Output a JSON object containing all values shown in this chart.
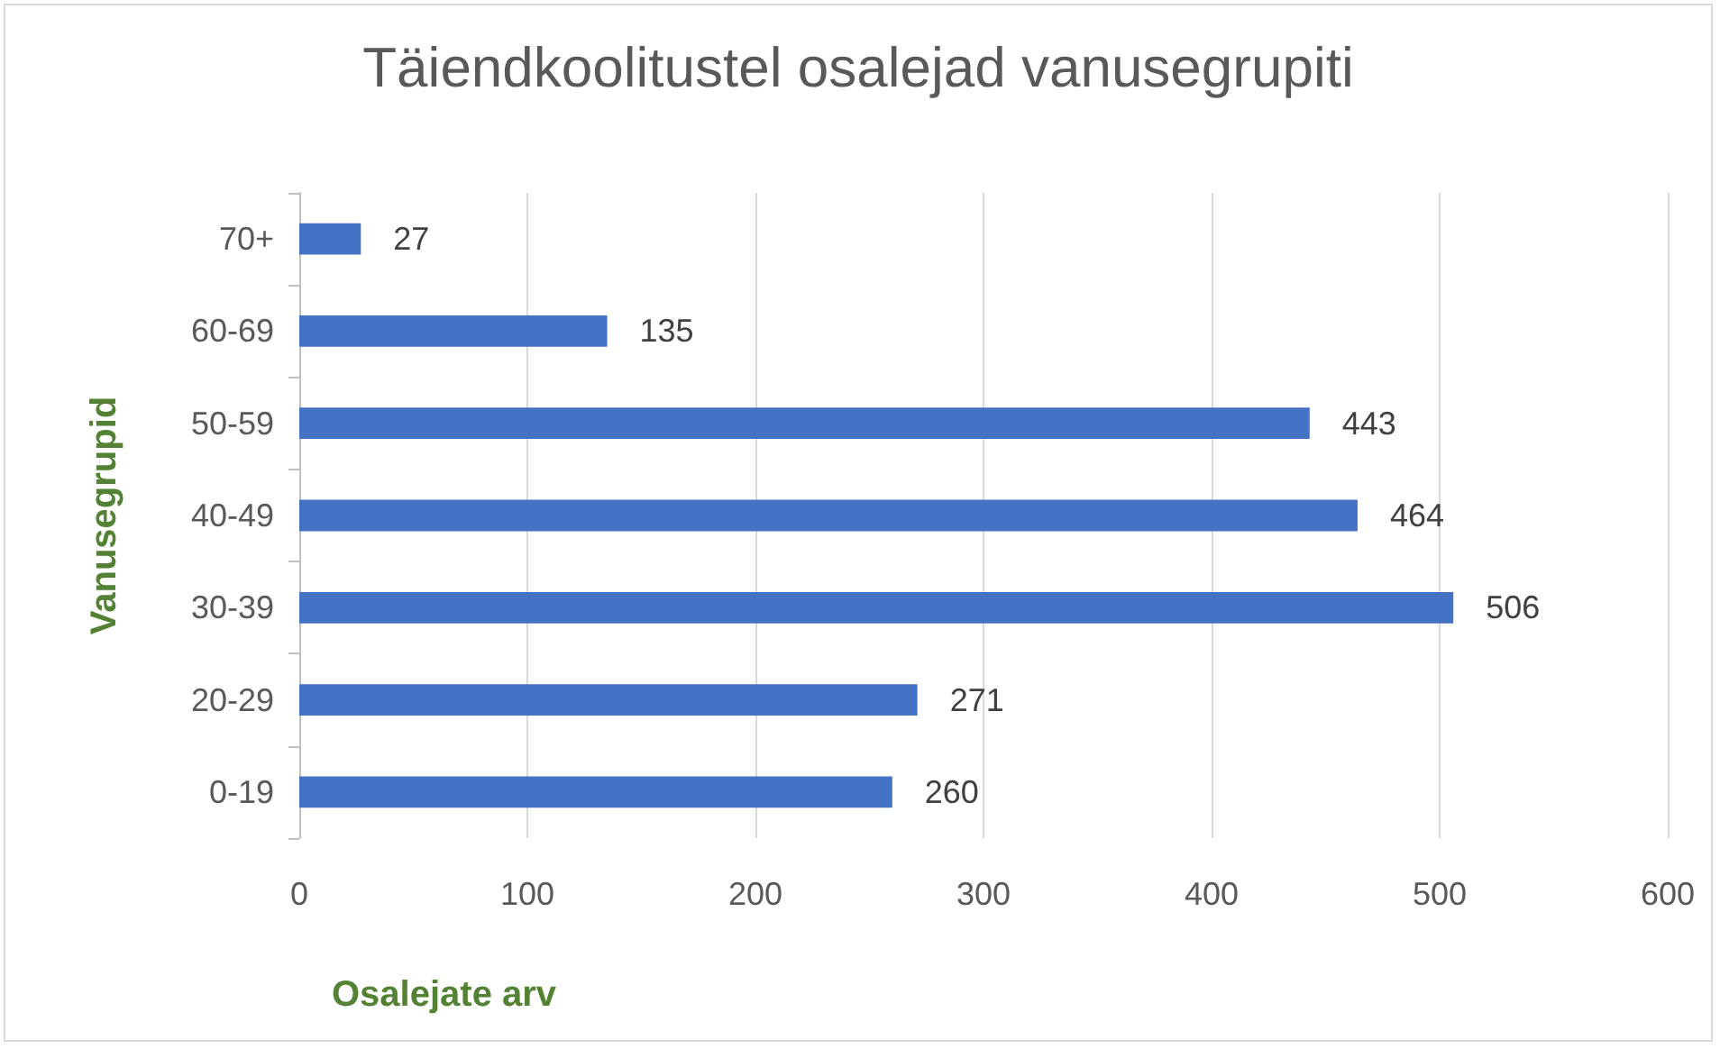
{
  "chart_data": {
    "type": "bar",
    "orientation": "horizontal",
    "title": "Täiendkoolitustel osalejad vanusegrupiti",
    "xlabel": "Osalejate arv",
    "ylabel": "Vanusegrupid",
    "categories": [
      "70+",
      "60-69",
      "50-59",
      "40-49",
      "30-39",
      "20-29",
      "0-19"
    ],
    "values": [
      27,
      135,
      443,
      464,
      506,
      271,
      260
    ],
    "color": "#4472c4",
    "xlim": [
      0,
      600
    ],
    "xticks": [
      0,
      100,
      200,
      300,
      400,
      500,
      600
    ],
    "grid": "x",
    "data_labels": true
  }
}
